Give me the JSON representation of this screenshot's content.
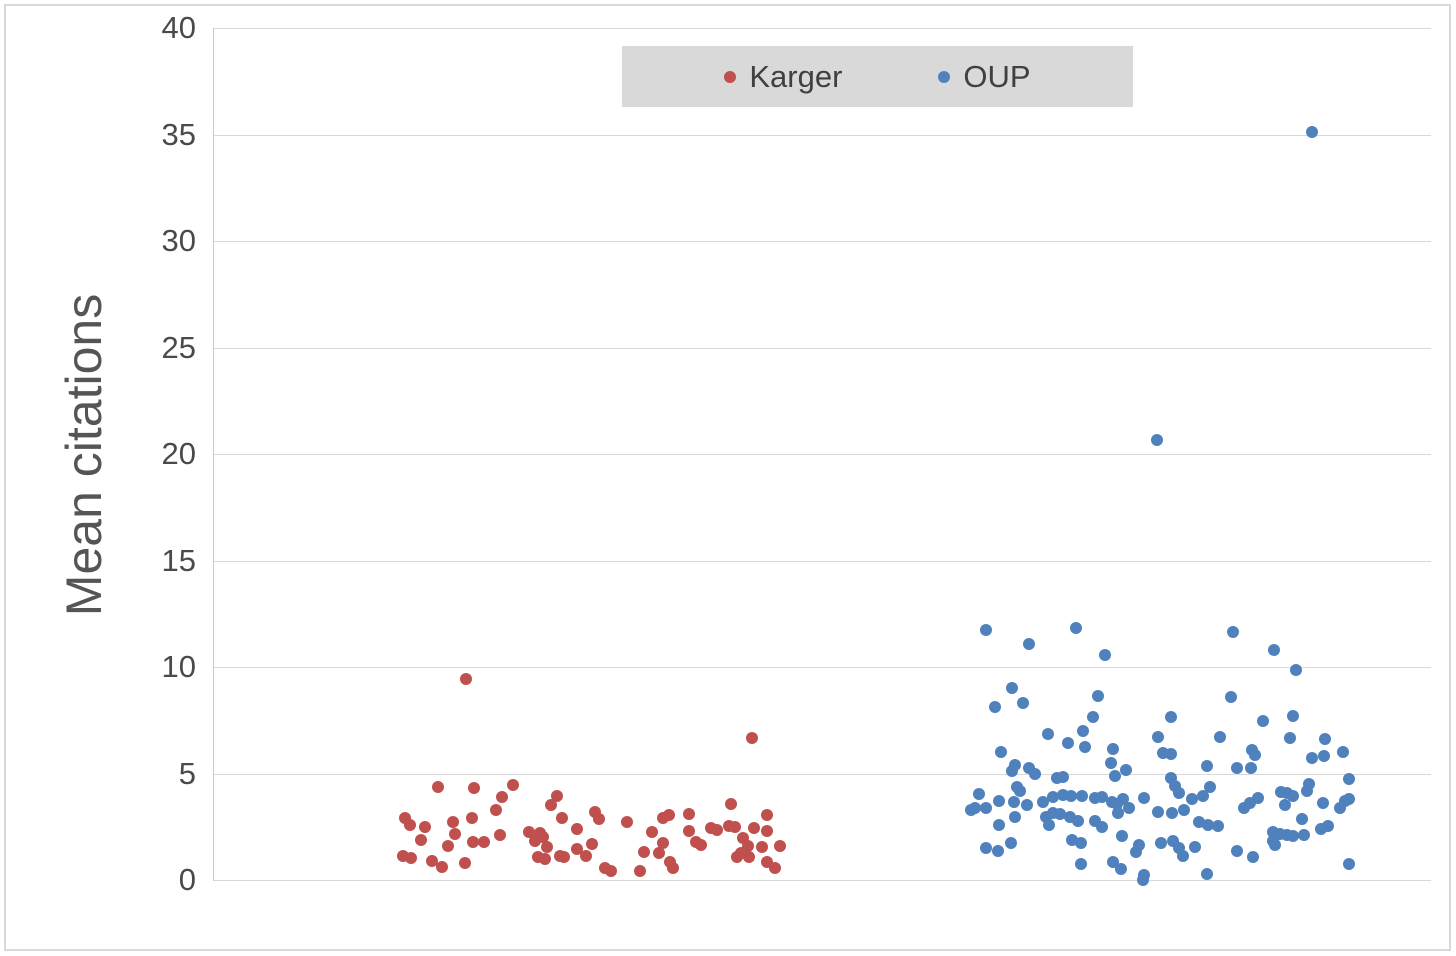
{
  "chart_data": {
    "type": "scatter",
    "title": "",
    "xlabel": "",
    "ylabel": "Mean citations",
    "ylim": [
      0,
      40
    ],
    "yticks": [
      0,
      5,
      10,
      15,
      20,
      25,
      30,
      35,
      40
    ],
    "grid": true,
    "legend_position": "top-center",
    "x_encoding": "percent of plot width (categorical jitter, no x axis shown)",
    "series": [
      {
        "name": "Karger",
        "color": "#C0504D",
        "points": [
          [
            20.7,
            9.45
          ],
          [
            18.4,
            4.35
          ],
          [
            21.4,
            4.3
          ],
          [
            24.6,
            4.45
          ],
          [
            23.7,
            3.9
          ],
          [
            23.2,
            3.3
          ],
          [
            15.7,
            2.9
          ],
          [
            16.1,
            2.6
          ],
          [
            17.3,
            2.5
          ],
          [
            19.6,
            2.7
          ],
          [
            21.2,
            2.9
          ],
          [
            19.8,
            2.15
          ],
          [
            17.0,
            1.9
          ],
          [
            23.5,
            2.1
          ],
          [
            25.9,
            2.25
          ],
          [
            21.3,
            1.8
          ],
          [
            22.2,
            1.8
          ],
          [
            19.2,
            1.6
          ],
          [
            15.5,
            1.15
          ],
          [
            16.2,
            1.05
          ],
          [
            17.9,
            0.9
          ],
          [
            18.7,
            0.6
          ],
          [
            20.6,
            0.8
          ],
          [
            28.2,
            3.95
          ],
          [
            27.7,
            3.5
          ],
          [
            28.6,
            2.9
          ],
          [
            29.8,
            2.4
          ],
          [
            31.3,
            3.2
          ],
          [
            31.6,
            2.85
          ],
          [
            33.9,
            2.7
          ],
          [
            36.0,
            2.25
          ],
          [
            26.8,
            2.2
          ],
          [
            27.0,
            2.0
          ],
          [
            26.4,
            1.85
          ],
          [
            27.4,
            1.55
          ],
          [
            26.6,
            1.1
          ],
          [
            27.2,
            1.0
          ],
          [
            28.4,
            1.15
          ],
          [
            28.8,
            1.1
          ],
          [
            29.8,
            1.45
          ],
          [
            30.6,
            1.15
          ],
          [
            31.1,
            1.7
          ],
          [
            32.1,
            0.55
          ],
          [
            32.6,
            0.4
          ],
          [
            35.0,
            0.4
          ],
          [
            35.3,
            1.3
          ],
          [
            36.6,
            1.25
          ],
          [
            44.2,
            6.65
          ],
          [
            37.4,
            3.05
          ],
          [
            39.0,
            3.1
          ],
          [
            36.9,
            2.9
          ],
          [
            42.5,
            3.55
          ],
          [
            40.8,
            2.45
          ],
          [
            41.3,
            2.35
          ],
          [
            39.0,
            2.3
          ],
          [
            42.3,
            2.55
          ],
          [
            42.8,
            2.5
          ],
          [
            45.4,
            3.05
          ],
          [
            44.4,
            2.45
          ],
          [
            45.4,
            2.3
          ],
          [
            36.9,
            1.75
          ],
          [
            39.6,
            1.8
          ],
          [
            40.0,
            1.65
          ],
          [
            43.5,
            1.95
          ],
          [
            43.9,
            1.6
          ],
          [
            43.3,
            1.25
          ],
          [
            43.0,
            1.1
          ],
          [
            44.0,
            1.1
          ],
          [
            45.0,
            1.55
          ],
          [
            46.5,
            1.6
          ],
          [
            45.4,
            0.85
          ],
          [
            37.5,
            0.85
          ],
          [
            37.7,
            0.55
          ],
          [
            46.1,
            0.55
          ]
        ]
      },
      {
        "name": "OUP",
        "color": "#4F81BD",
        "points": [
          [
            63.4,
            11.75
          ],
          [
            67.0,
            11.1
          ],
          [
            70.8,
            11.85
          ],
          [
            65.6,
            9.0
          ],
          [
            66.5,
            8.3
          ],
          [
            64.2,
            8.1
          ],
          [
            68.5,
            6.85
          ],
          [
            71.4,
            7.0
          ],
          [
            73.2,
            10.55
          ],
          [
            72.2,
            7.65
          ],
          [
            72.6,
            8.65
          ],
          [
            78.6,
            7.65
          ],
          [
            77.6,
            6.7
          ],
          [
            82.7,
            6.7
          ],
          [
            83.7,
            11.65
          ],
          [
            87.1,
            10.8
          ],
          [
            88.9,
            9.85
          ],
          [
            83.6,
            8.6
          ],
          [
            88.7,
            7.7
          ],
          [
            86.2,
            7.45
          ],
          [
            88.4,
            6.65
          ],
          [
            91.3,
            6.6
          ],
          [
            64.7,
            6.0
          ],
          [
            70.2,
            6.45
          ],
          [
            71.6,
            6.25
          ],
          [
            65.8,
            5.4
          ],
          [
            65.6,
            5.1
          ],
          [
            67.0,
            5.25
          ],
          [
            67.5,
            5.0
          ],
          [
            69.3,
            4.8
          ],
          [
            69.8,
            4.85
          ],
          [
            66.0,
            4.35
          ],
          [
            66.2,
            4.2
          ],
          [
            62.9,
            4.05
          ],
          [
            64.5,
            3.7
          ],
          [
            65.7,
            3.65
          ],
          [
            62.5,
            3.4
          ],
          [
            63.4,
            3.4
          ],
          [
            62.2,
            3.3
          ],
          [
            66.8,
            3.5
          ],
          [
            68.1,
            3.65
          ],
          [
            68.9,
            3.9
          ],
          [
            69.8,
            4.0
          ],
          [
            70.4,
            3.95
          ],
          [
            71.3,
            3.95
          ],
          [
            68.4,
            2.95
          ],
          [
            68.9,
            3.15
          ],
          [
            69.5,
            3.1
          ],
          [
            68.6,
            2.6
          ],
          [
            64.5,
            2.6
          ],
          [
            65.8,
            2.95
          ],
          [
            70.3,
            2.95
          ],
          [
            71.0,
            2.75
          ],
          [
            70.5,
            1.9
          ],
          [
            71.2,
            1.75
          ],
          [
            65.5,
            1.75
          ],
          [
            63.4,
            1.5
          ],
          [
            64.4,
            1.35
          ],
          [
            71.2,
            0.75
          ],
          [
            73.9,
            6.15
          ],
          [
            78.0,
            5.95
          ],
          [
            78.6,
            5.9
          ],
          [
            73.7,
            5.5
          ],
          [
            74.9,
            5.15
          ],
          [
            74.0,
            4.9
          ],
          [
            81.6,
            5.35
          ],
          [
            78.6,
            4.8
          ],
          [
            79.0,
            4.4
          ],
          [
            79.3,
            4.1
          ],
          [
            81.8,
            4.35
          ],
          [
            81.3,
            3.95
          ],
          [
            80.4,
            3.8
          ],
          [
            72.4,
            3.85
          ],
          [
            73.0,
            3.9
          ],
          [
            74.7,
            3.8
          ],
          [
            76.4,
            3.85
          ],
          [
            73.8,
            3.65
          ],
          [
            74.2,
            3.55
          ],
          [
            75.2,
            3.4
          ],
          [
            74.3,
            3.15
          ],
          [
            77.6,
            3.2
          ],
          [
            78.7,
            3.15
          ],
          [
            79.7,
            3.3
          ],
          [
            80.9,
            2.7
          ],
          [
            81.7,
            2.6
          ],
          [
            82.5,
            2.55
          ],
          [
            72.4,
            2.75
          ],
          [
            73.0,
            2.5
          ],
          [
            74.6,
            2.05
          ],
          [
            77.8,
            1.75
          ],
          [
            78.8,
            1.85
          ],
          [
            79.3,
            1.5
          ],
          [
            79.6,
            1.15
          ],
          [
            80.6,
            1.55
          ],
          [
            76.0,
            1.65
          ],
          [
            75.8,
            1.3
          ],
          [
            73.9,
            0.85
          ],
          [
            74.5,
            0.5
          ],
          [
            76.4,
            0.25
          ],
          [
            76.3,
            0.0
          ],
          [
            81.6,
            0.3
          ],
          [
            85.3,
            6.1
          ],
          [
            85.5,
            5.85
          ],
          [
            90.2,
            5.75
          ],
          [
            91.2,
            5.8
          ],
          [
            92.8,
            6.0
          ],
          [
            84.1,
            5.25
          ],
          [
            85.2,
            5.25
          ],
          [
            93.3,
            4.75
          ],
          [
            90.0,
            4.5
          ],
          [
            89.8,
            4.2
          ],
          [
            87.7,
            4.15
          ],
          [
            88.2,
            4.1
          ],
          [
            88.7,
            3.95
          ],
          [
            85.8,
            3.85
          ],
          [
            85.1,
            3.6
          ],
          [
            84.6,
            3.4
          ],
          [
            88.0,
            3.5
          ],
          [
            91.1,
            3.6
          ],
          [
            92.5,
            3.4
          ],
          [
            92.9,
            3.7
          ],
          [
            93.3,
            3.8
          ],
          [
            89.4,
            2.85
          ],
          [
            91.5,
            2.55
          ],
          [
            91.0,
            2.4
          ],
          [
            87.0,
            2.25
          ],
          [
            87.6,
            2.15
          ],
          [
            87.0,
            1.85
          ],
          [
            88.2,
            2.1
          ],
          [
            88.7,
            2.05
          ],
          [
            89.6,
            2.1
          ],
          [
            87.2,
            1.65
          ],
          [
            84.1,
            1.35
          ],
          [
            85.4,
            1.1
          ],
          [
            93.3,
            0.75
          ],
          [
            77.5,
            20.65
          ],
          [
            90.2,
            35.1
          ]
        ]
      }
    ],
    "colors": {
      "gridline": "#d9d9d9",
      "axis_line": "#c9c9c9",
      "tick_text": "#4a4a4a",
      "axis_title_text": "#555555",
      "legend_background": "#d9d9d9",
      "figure_border": "#d9d9d9"
    }
  }
}
